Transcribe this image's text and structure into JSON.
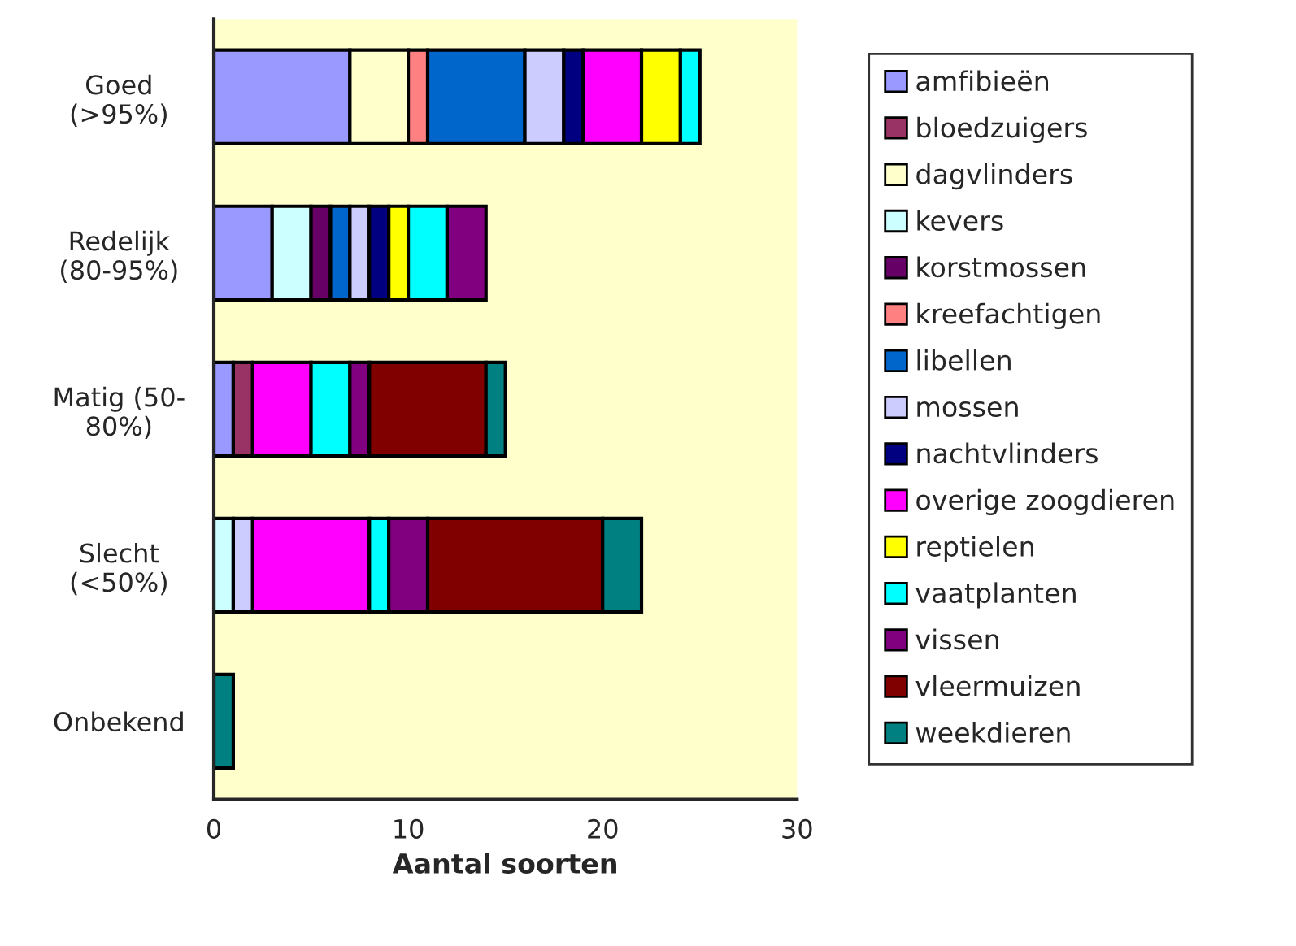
{
  "chart_data": {
    "type": "bar",
    "orientation": "horizontal",
    "stacked": true,
    "xlabel": "Aantal soorten",
    "categories": [
      "Goed\n(>95%)",
      "Redelijk\n(80-95%)",
      "Matig (50-\n80%)",
      "Slecht\n(<50%)",
      "Onbekend"
    ],
    "xlim": [
      0,
      30
    ],
    "xticks": [
      0,
      10,
      20,
      30
    ],
    "grid": false,
    "legend": "right",
    "series": [
      {
        "name": "amfibieën",
        "color": "#9999ff",
        "values": [
          7,
          3,
          1,
          null,
          null
        ]
      },
      {
        "name": "bloedzuigers",
        "color": "#993366",
        "values": [
          null,
          null,
          1,
          null,
          null
        ]
      },
      {
        "name": "dagvlinders",
        "color": "#ffffcc",
        "values": [
          3,
          null,
          null,
          null,
          null
        ]
      },
      {
        "name": "kevers",
        "color": "#ccffff",
        "values": [
          null,
          2,
          null,
          1,
          null
        ]
      },
      {
        "name": "korstmossen",
        "color": "#660066",
        "values": [
          null,
          1,
          null,
          null,
          null
        ]
      },
      {
        "name": "kreefachtigen",
        "color": "#ff8080",
        "values": [
          1,
          null,
          null,
          null,
          null
        ]
      },
      {
        "name": "libellen",
        "color": "#0066cc",
        "values": [
          5,
          1,
          null,
          null,
          null
        ]
      },
      {
        "name": "mossen",
        "color": "#ccccff",
        "values": [
          2,
          1,
          null,
          1,
          null
        ]
      },
      {
        "name": "nachtvlinders",
        "color": "#000080",
        "values": [
          1,
          1,
          null,
          null,
          null
        ]
      },
      {
        "name": "overige zoogdieren",
        "color": "#ff00ff",
        "values": [
          3,
          null,
          3,
          6,
          null
        ]
      },
      {
        "name": "reptielen",
        "color": "#ffff00",
        "values": [
          2,
          1,
          null,
          null,
          null
        ]
      },
      {
        "name": "vaatplanten",
        "color": "#00ffff",
        "values": [
          1,
          2,
          2,
          1,
          null
        ]
      },
      {
        "name": "vissen",
        "color": "#800080",
        "values": [
          null,
          2,
          1,
          2,
          null
        ]
      },
      {
        "name": "vleermuizen",
        "color": "#800000",
        "values": [
          null,
          null,
          6,
          9,
          null
        ]
      },
      {
        "name": "weekdieren",
        "color": "#008080",
        "values": [
          null,
          null,
          1,
          2,
          1
        ]
      }
    ]
  }
}
